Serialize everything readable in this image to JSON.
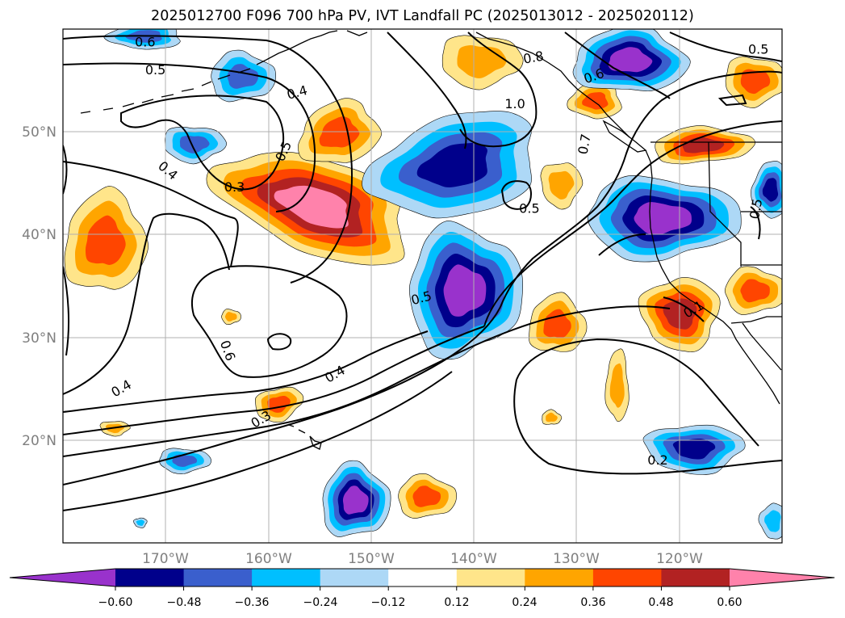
{
  "title": "2025012700 F096 700 hPa PV, IVT Landfall PC (2025013012 - 2025020112)",
  "map": {
    "lon_labels": [
      "170°W",
      "160°W",
      "150°W",
      "140°W",
      "130°W",
      "120°W"
    ],
    "lat_labels": [
      "50°N",
      "40°N",
      "30°N",
      "20°N"
    ],
    "contour_labels": [
      {
        "text": "0.6",
        "lon": -172.0,
        "lat": 58.7,
        "rot": 0
      },
      {
        "text": "0.5",
        "lon": -171.0,
        "lat": 56.0,
        "rot": 0
      },
      {
        "text": "0.4",
        "lon": -157.2,
        "lat": 53.8,
        "rot": -15
      },
      {
        "text": "0.5",
        "lon": -158.5,
        "lat": 48.1,
        "rot": -65
      },
      {
        "text": "0.4",
        "lon": -169.8,
        "lat": 46.2,
        "rot": 40
      },
      {
        "text": "0.3",
        "lon": -163.3,
        "lat": 44.6,
        "rot": 0
      },
      {
        "text": "0.8",
        "lon": -134.2,
        "lat": 57.2,
        "rot": -10
      },
      {
        "text": "0.6",
        "lon": -128.3,
        "lat": 55.4,
        "rot": -20
      },
      {
        "text": "1.0",
        "lon": -136.0,
        "lat": 52.7,
        "rot": 0
      },
      {
        "text": "0.7",
        "lon": -129.2,
        "lat": 48.8,
        "rot": -80
      },
      {
        "text": "0.5",
        "lon": -134.6,
        "lat": 42.5,
        "rot": 0
      },
      {
        "text": "0.5",
        "lon": -145.1,
        "lat": 33.8,
        "rot": -15
      },
      {
        "text": "0.6",
        "lon": -164.0,
        "lat": 28.7,
        "rot": 70
      },
      {
        "text": "0.4",
        "lon": -153.5,
        "lat": 26.4,
        "rot": -30
      },
      {
        "text": "0.4",
        "lon": -174.3,
        "lat": 25.0,
        "rot": -30
      },
      {
        "text": "0.3",
        "lon": -160.7,
        "lat": 22.0,
        "rot": -30
      },
      {
        "text": "0.2",
        "lon": -122.1,
        "lat": 18.0,
        "rot": 0
      },
      {
        "text": "0.5",
        "lon": -112.3,
        "lat": 58.0,
        "rot": 0
      },
      {
        "text": "0.5",
        "lon": -112.5,
        "lat": 42.5,
        "rot": -80
      },
      {
        "text": "0.1",
        "lon": -118.6,
        "lat": 32.7,
        "rot": -30
      }
    ]
  },
  "colorbar": {
    "ticks": [
      "−0.60",
      "−0.48",
      "−0.36",
      "−0.24",
      "−0.12",
      "0.12",
      "0.24",
      "0.36",
      "0.48",
      "0.60"
    ],
    "colors": [
      "#9932cc",
      "#00008b",
      "#3a5fcd",
      "#00bfff",
      "#add8f6",
      "#ffffff",
      "#ffe58a",
      "#ffa500",
      "#ff4500",
      "#b22222",
      "#ff82ab"
    ]
  },
  "legend_colors": {
    "pos1": "#ffe58a",
    "pos2": "#ffa500",
    "pos3": "#ff4500",
    "pos4": "#b22222",
    "pos5": "#ff82ab",
    "neg1": "#add8f6",
    "neg2": "#00bfff",
    "neg3": "#3a5fcd",
    "neg4": "#00008b",
    "neg5": "#9932cc",
    "grid": "#b0b0b0",
    "tick_text": "#7f7f7f",
    "contour": "#000000"
  }
}
